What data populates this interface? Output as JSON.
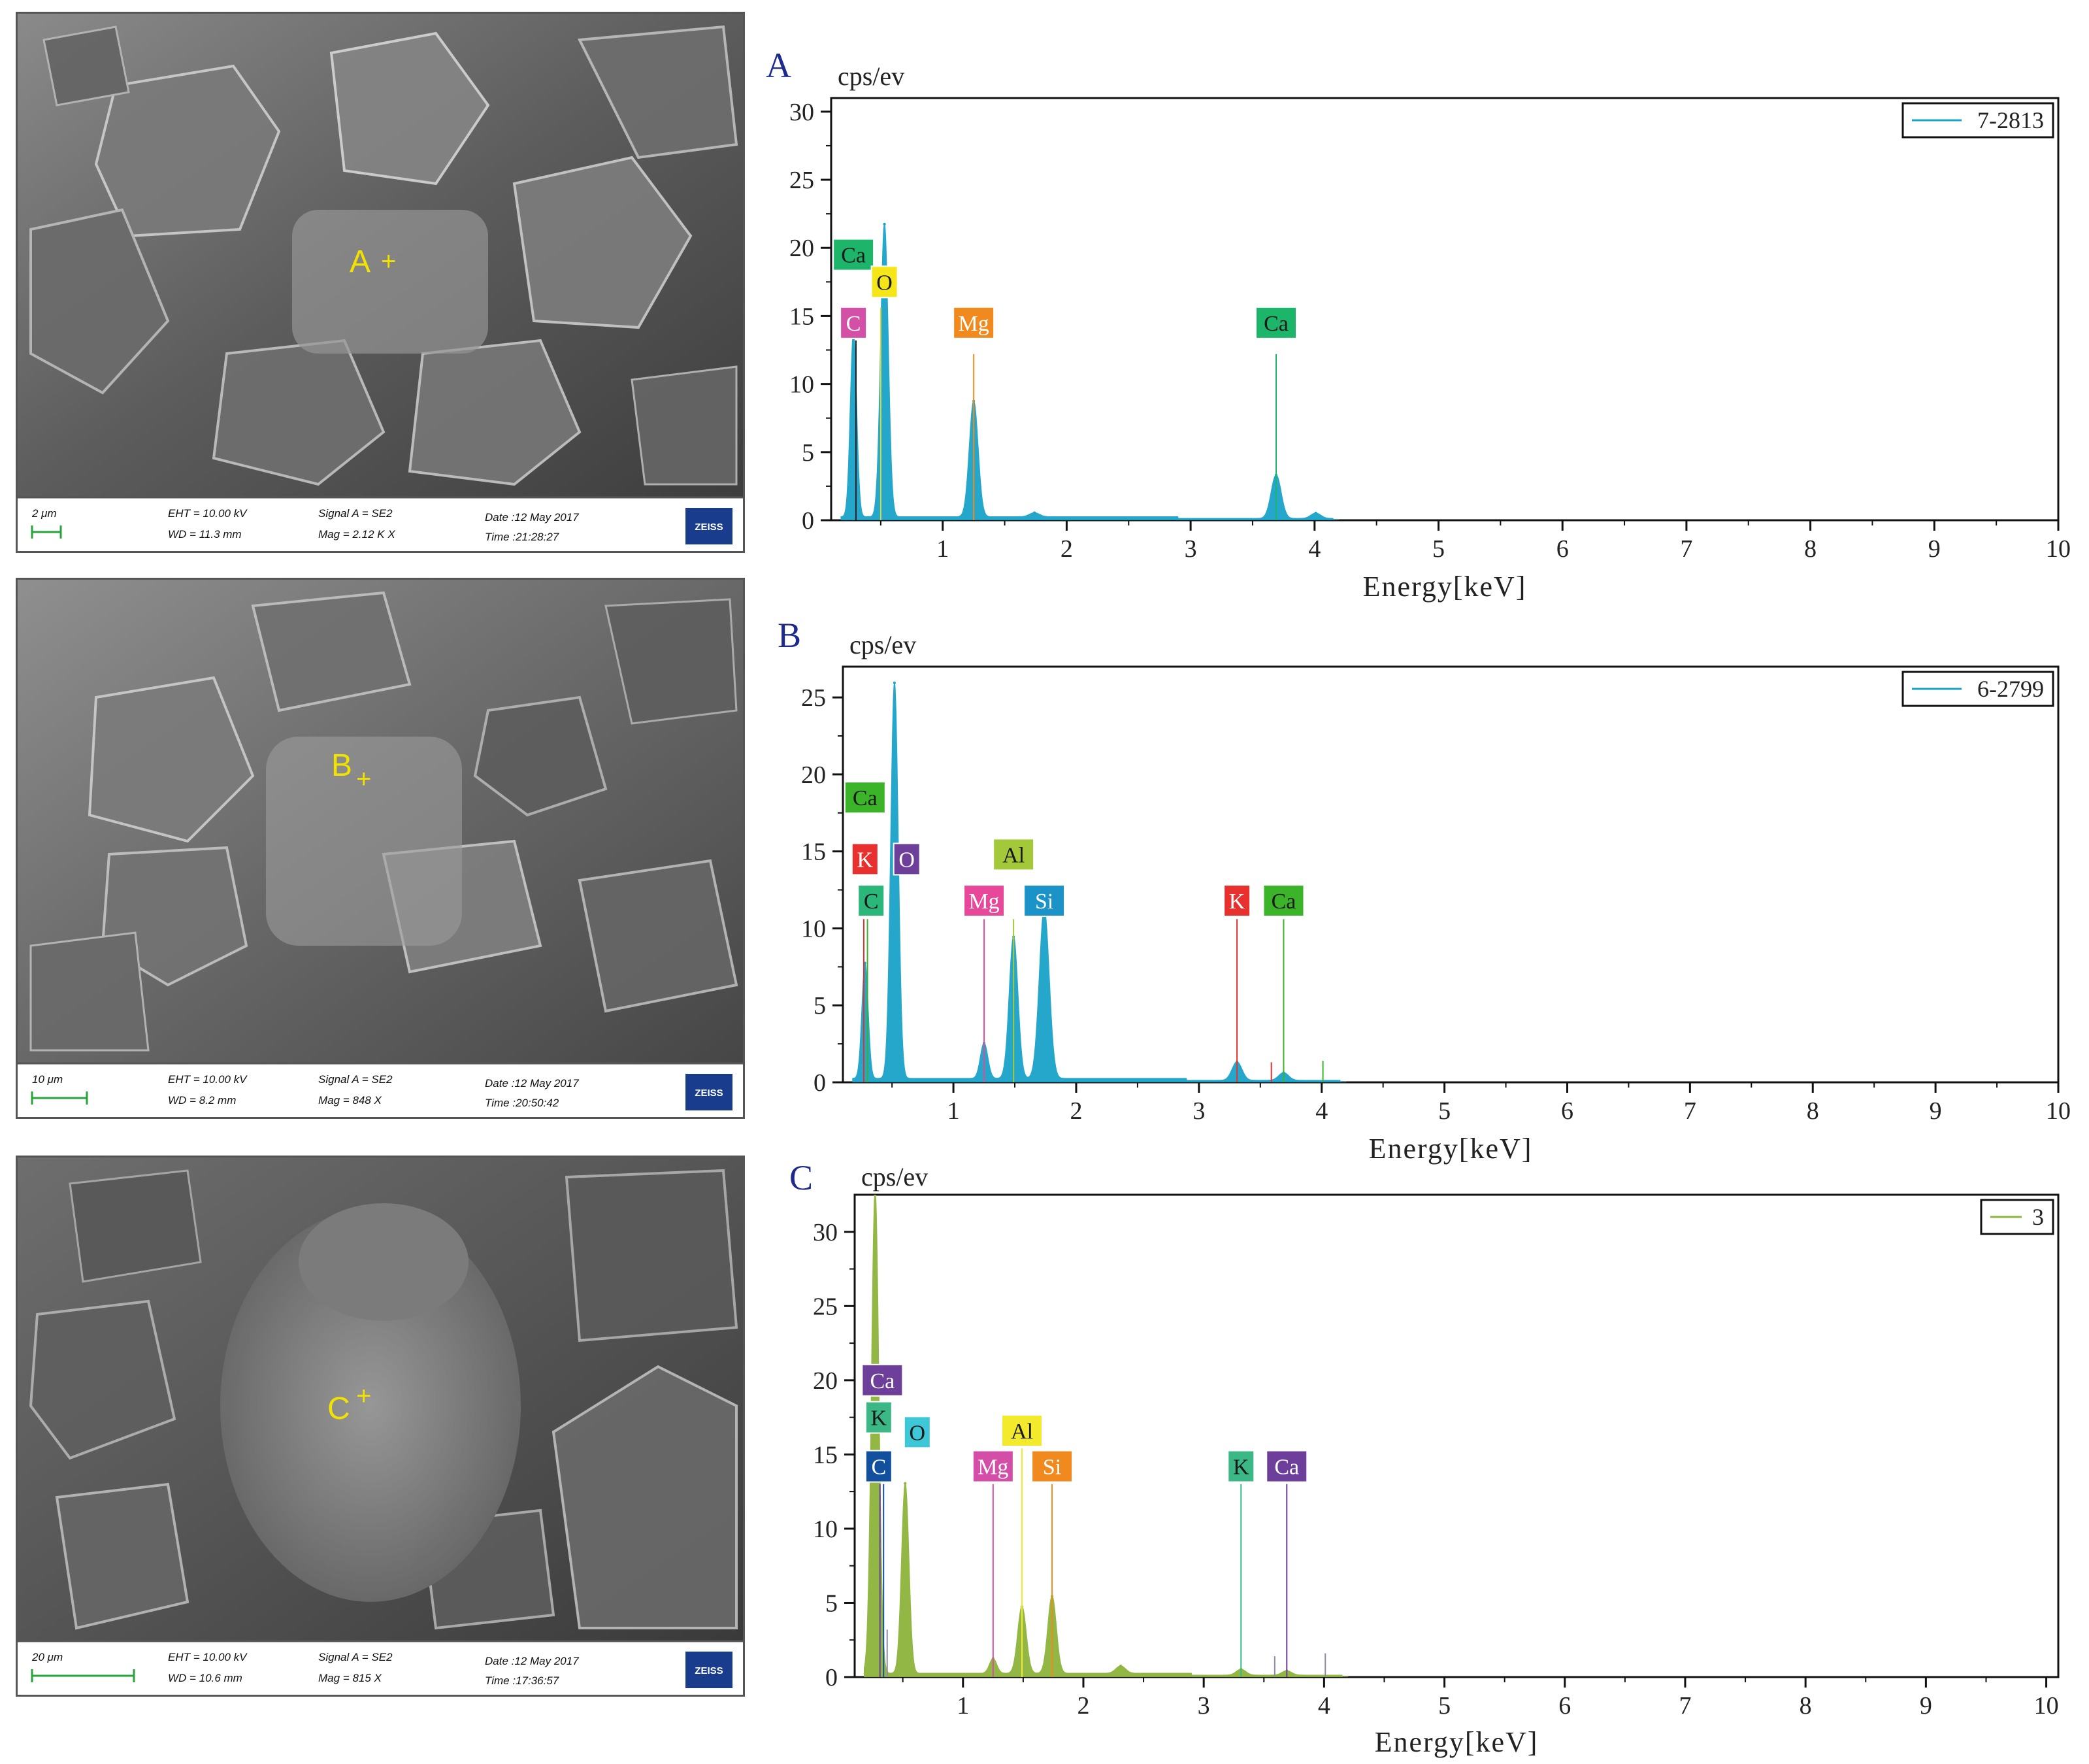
{
  "panels": [
    {
      "letter": "A",
      "sem": {
        "marker_label": "A",
        "scale_label": "2 μm",
        "eht": "EHT = 10.00 kV",
        "wd": "WD = 11.3 mm",
        "signal": "Signal A = SE2",
        "mag": "Mag =   2.12 K X",
        "date": "Date :12 May 2017",
        "time": "Time :21:28:27",
        "logo": "ZEISS"
      },
      "chart_data": {
        "type": "line",
        "series_color": "#1aa3c9",
        "ylabel": "cps/ev",
        "xlabel": "Energy[keV]",
        "xlim": [
          0.1,
          10
        ],
        "ylim": [
          0,
          31
        ],
        "x_ticks": [
          1,
          2,
          3,
          4,
          5,
          6,
          7,
          8,
          9,
          10
        ],
        "y_ticks": [
          0,
          5,
          10,
          15,
          20,
          25,
          30
        ],
        "legend": {
          "label": "7-2813",
          "position": "top-right"
        },
        "peaks": [
          {
            "x": 0.28,
            "height": 13.5,
            "width": 0.025
          },
          {
            "x": 0.53,
            "height": 21.5,
            "width": 0.03
          },
          {
            "x": 1.25,
            "height": 8.5,
            "width": 0.035
          },
          {
            "x": 1.74,
            "height": 0.3,
            "width": 0.04
          },
          {
            "x": 3.69,
            "height": 3.2,
            "width": 0.04
          },
          {
            "x": 4.01,
            "height": 0.4,
            "width": 0.04
          }
        ],
        "baseline": 0.25,
        "element_labels": [
          {
            "text": "Ca",
            "x": 0.28,
            "y": 19.5,
            "color": "#1cb56a",
            "text_color": "#1a1a1a"
          },
          {
            "text": "C",
            "x": 0.28,
            "y": 14.5,
            "color": "#d44fa6",
            "text_color": "#ffffff"
          },
          {
            "text": "O",
            "x": 0.53,
            "y": 17.5,
            "color": "#f5e61a",
            "text_color": "#1a1a1a"
          },
          {
            "text": "Mg",
            "x": 1.25,
            "y": 14.5,
            "color": "#f08a1e",
            "text_color": "#ffffff"
          },
          {
            "text": "Ca",
            "x": 3.69,
            "y": 14.5,
            "color": "#1cb56a",
            "text_color": "#1a1a1a"
          }
        ],
        "marker_lines": [
          {
            "x": 0.3,
            "top": 13.2,
            "color": "#1a1a1a"
          },
          {
            "x": 0.5,
            "top": 15.6,
            "color": "#d6d83a"
          },
          {
            "x": 1.25,
            "top": 12.2,
            "color": "#f08a1e"
          },
          {
            "x": 3.69,
            "top": 12.2,
            "color": "#1cb56a"
          }
        ]
      }
    },
    {
      "letter": "B",
      "sem": {
        "marker_label": "B",
        "scale_label": "10 μm",
        "eht": "EHT = 10.00 kV",
        "wd": "WD = 8.2 mm",
        "signal": "Signal A = SE2",
        "mag": "Mag =   848 X",
        "date": "Date :12 May 2017",
        "time": "Time :20:50:42",
        "logo": "ZEISS"
      },
      "chart_data": {
        "type": "line",
        "series_color": "#1aa3c9",
        "ylabel": "cps/ev",
        "xlabel": "Energy[keV]",
        "xlim": [
          0.1,
          10
        ],
        "ylim": [
          0,
          27
        ],
        "x_ticks": [
          1,
          2,
          3,
          4,
          5,
          6,
          7,
          8,
          9,
          10
        ],
        "y_ticks": [
          0,
          5,
          10,
          15,
          20,
          25
        ],
        "legend": {
          "label": "6-2799",
          "position": "top-right"
        },
        "peaks": [
          {
            "x": 0.28,
            "height": 7.5,
            "width": 0.025
          },
          {
            "x": 0.52,
            "height": 25.7,
            "width": 0.03
          },
          {
            "x": 1.25,
            "height": 2.3,
            "width": 0.03
          },
          {
            "x": 1.49,
            "height": 9.2,
            "width": 0.035
          },
          {
            "x": 1.74,
            "height": 11.0,
            "width": 0.04
          },
          {
            "x": 3.31,
            "height": 1.2,
            "width": 0.04
          },
          {
            "x": 3.69,
            "height": 0.5,
            "width": 0.04
          }
        ],
        "baseline": 0.25,
        "element_labels": [
          {
            "text": "Ca",
            "x": 0.28,
            "y": 18.5,
            "color": "#3cb42a",
            "text_color": "#1a1a1a"
          },
          {
            "text": "K",
            "x": 0.28,
            "y": 14.5,
            "color": "#e8312f",
            "text_color": "#ffffff"
          },
          {
            "text": "O",
            "x": 0.62,
            "y": 14.5,
            "color": "#6d3f9a",
            "text_color": "#ffffff"
          },
          {
            "text": "C",
            "x": 0.33,
            "y": 11.8,
            "color": "#2bb77a",
            "text_color": "#1a1a1a"
          },
          {
            "text": "Al",
            "x": 1.49,
            "y": 14.8,
            "color": "#a3c93a",
            "text_color": "#1a1a1a"
          },
          {
            "text": "Mg",
            "x": 1.25,
            "y": 11.8,
            "color": "#e8489a",
            "text_color": "#ffffff"
          },
          {
            "text": "Si",
            "x": 1.74,
            "y": 11.8,
            "color": "#1b93c9",
            "text_color": "#ffffff"
          },
          {
            "text": "K",
            "x": 3.31,
            "y": 11.8,
            "color": "#e8312f",
            "text_color": "#ffffff"
          },
          {
            "text": "Ca",
            "x": 3.69,
            "y": 11.8,
            "color": "#3cb42a",
            "text_color": "#1a1a1a"
          }
        ],
        "marker_lines": [
          {
            "x": 0.27,
            "top": 10.6,
            "color": "#e8312f"
          },
          {
            "x": 0.3,
            "top": 10.6,
            "color": "#3cb42a"
          },
          {
            "x": 1.25,
            "top": 10.6,
            "color": "#e8489a"
          },
          {
            "x": 1.49,
            "top": 10.6,
            "color": "#a3c93a"
          },
          {
            "x": 3.31,
            "top": 10.6,
            "color": "#e8312f"
          },
          {
            "x": 3.69,
            "top": 10.6,
            "color": "#3cb42a"
          },
          {
            "x": 3.59,
            "top": 1.3,
            "color": "#e8312f"
          },
          {
            "x": 4.01,
            "top": 1.4,
            "color": "#3cb42a"
          }
        ]
      }
    },
    {
      "letter": "C",
      "sem": {
        "marker_label": "C",
        "scale_label": "20 μm",
        "eht": "EHT = 10.00 kV",
        "wd": "WD = 10.6 mm",
        "signal": "Signal A = SE2",
        "mag": "Mag =   815 X",
        "date": "Date :12 May 2017",
        "time": "Time :17:36:57",
        "logo": "ZEISS"
      },
      "chart_data": {
        "type": "line",
        "series_color": "#8db43c",
        "ylabel": "cps/ev",
        "xlabel": "Energy[keV]",
        "xlim": [
          0.1,
          10.1
        ],
        "ylim": [
          0,
          32.5
        ],
        "x_ticks": [
          1,
          2,
          3,
          4,
          5,
          6,
          7,
          8,
          9,
          10
        ],
        "y_ticks": [
          0,
          5,
          10,
          15,
          20,
          25,
          30
        ],
        "legend": {
          "label": "3",
          "position": "top-right"
        },
        "peaks": [
          {
            "x": 0.27,
            "height": 32.5,
            "width": 0.03
          },
          {
            "x": 0.52,
            "height": 12.8,
            "width": 0.03
          },
          {
            "x": 1.25,
            "height": 1.0,
            "width": 0.03
          },
          {
            "x": 1.49,
            "height": 4.5,
            "width": 0.035
          },
          {
            "x": 1.74,
            "height": 5.2,
            "width": 0.035
          },
          {
            "x": 2.31,
            "height": 0.5,
            "width": 0.04
          },
          {
            "x": 3.31,
            "height": 0.4,
            "width": 0.04
          },
          {
            "x": 3.69,
            "height": 0.3,
            "width": 0.04
          }
        ],
        "baseline": 0.25,
        "element_labels": [
          {
            "text": "Ca",
            "x": 0.33,
            "y": 20.0,
            "color": "#6d3f9a",
            "text_color": "#ffffff"
          },
          {
            "text": "K",
            "x": 0.3,
            "y": 17.5,
            "color": "#3cb887",
            "text_color": "#1a1a1a"
          },
          {
            "text": "O",
            "x": 0.62,
            "y": 16.5,
            "color": "#3ec7d6",
            "text_color": "#1a1a1a"
          },
          {
            "text": "C",
            "x": 0.3,
            "y": 14.2,
            "color": "#124f9c",
            "text_color": "#ffffff"
          },
          {
            "text": "Al",
            "x": 1.49,
            "y": 16.6,
            "color": "#f2ea2a",
            "text_color": "#1a1a1a"
          },
          {
            "text": "Mg",
            "x": 1.25,
            "y": 14.2,
            "color": "#d34fa7",
            "text_color": "#ffffff"
          },
          {
            "text": "Si",
            "x": 1.74,
            "y": 14.2,
            "color": "#f08a1e",
            "text_color": "#ffffff"
          },
          {
            "text": "K",
            "x": 3.31,
            "y": 14.2,
            "color": "#3cb887",
            "text_color": "#1a1a1a"
          },
          {
            "text": "Ca",
            "x": 3.69,
            "y": 14.2,
            "color": "#6d3f9a",
            "text_color": "#ffffff"
          }
        ],
        "marker_lines": [
          {
            "x": 0.31,
            "top": 13.0,
            "color": "#6d3f9a"
          },
          {
            "x": 0.34,
            "top": 13.0,
            "color": "#124f9c"
          },
          {
            "x": 1.25,
            "top": 13.0,
            "color": "#d34fa7"
          },
          {
            "x": 1.49,
            "top": 15.4,
            "color": "#f2ea2a"
          },
          {
            "x": 1.74,
            "top": 13.0,
            "color": "#f08a1e"
          },
          {
            "x": 3.31,
            "top": 13.0,
            "color": "#3cb887"
          },
          {
            "x": 3.69,
            "top": 13.0,
            "color": "#6d3f9a"
          },
          {
            "x": 0.37,
            "top": 3.2,
            "color": "#8e8ea0"
          },
          {
            "x": 3.59,
            "top": 1.4,
            "color": "#8e8ea0"
          },
          {
            "x": 4.01,
            "top": 1.6,
            "color": "#8e8ea0"
          }
        ]
      }
    }
  ]
}
